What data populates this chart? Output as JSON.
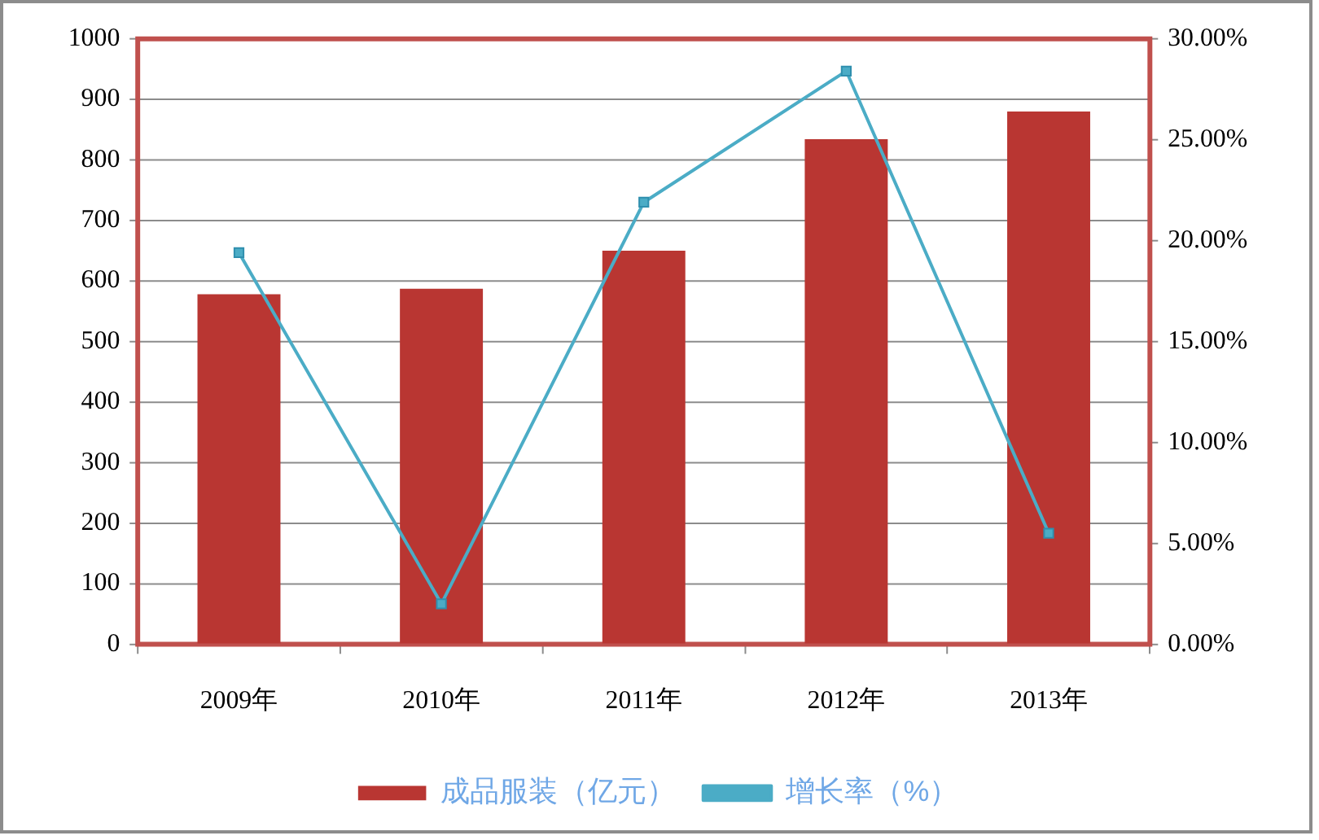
{
  "chart_data": {
    "type": "bar",
    "categories": [
      "2009年",
      "2010年",
      "2011年",
      "2012年",
      "2013年"
    ],
    "series": [
      {
        "name": "成品服装（亿元）",
        "color": "#b93632",
        "values": [
          578,
          587,
          650,
          834,
          880
        ]
      },
      {
        "name": "增长率（%）",
        "type": "line",
        "axis": "y2",
        "color": "#4bacc6",
        "values": [
          19.4,
          2.0,
          21.9,
          28.4,
          5.5
        ]
      }
    ],
    "ylim": [
      0,
      1000
    ],
    "yticks": [
      0,
      100,
      200,
      300,
      400,
      500,
      600,
      700,
      800,
      900,
      1000
    ],
    "y2lim": [
      0,
      30
    ],
    "y2ticks": [
      {
        "value": 0,
        "label": "0.00%"
      },
      {
        "value": 5,
        "label": "5.00%"
      },
      {
        "value": 10,
        "label": "10.00%"
      },
      {
        "value": 15,
        "label": "15.00%"
      },
      {
        "value": 20,
        "label": "20.00%"
      },
      {
        "value": 25,
        "label": "25.00%"
      },
      {
        "value": 30,
        "label": "30.00%"
      }
    ],
    "grid": "y",
    "legend": "bottom",
    "marker": "square"
  }
}
